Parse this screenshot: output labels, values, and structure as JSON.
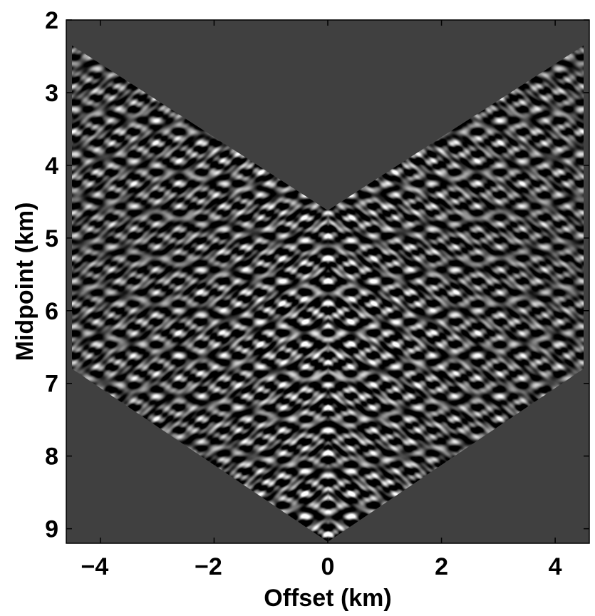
{
  "chart_data": {
    "type": "heatmap",
    "title": "",
    "xlabel": "Offset (km)",
    "ylabel": "Midpoint (km)",
    "xlim": [
      -4.6,
      4.6
    ],
    "ylim": [
      2.0,
      9.2
    ],
    "y_reversed": true,
    "x_ticks": [
      -4,
      -2,
      0,
      2,
      4
    ],
    "x_tick_labels": [
      "−4",
      "−2",
      "0",
      "2",
      "4"
    ],
    "y_ticks": [
      2,
      3,
      4,
      5,
      6,
      7,
      8,
      9
    ],
    "y_tick_labels": [
      "2",
      "3",
      "4",
      "5",
      "6",
      "7",
      "8",
      "9"
    ],
    "colormap": "gray",
    "background_color": "#404040",
    "data_region": {
      "upper_boundary": {
        "x": [
          -4.5,
          0,
          4.5
        ],
        "y": [
          2.35,
          4.62,
          2.35
        ]
      },
      "lower_boundary": {
        "x": [
          -4.5,
          0,
          4.5
        ],
        "y": [
          6.8,
          9.18,
          6.8
        ]
      }
    },
    "grid": false,
    "legend": false
  }
}
